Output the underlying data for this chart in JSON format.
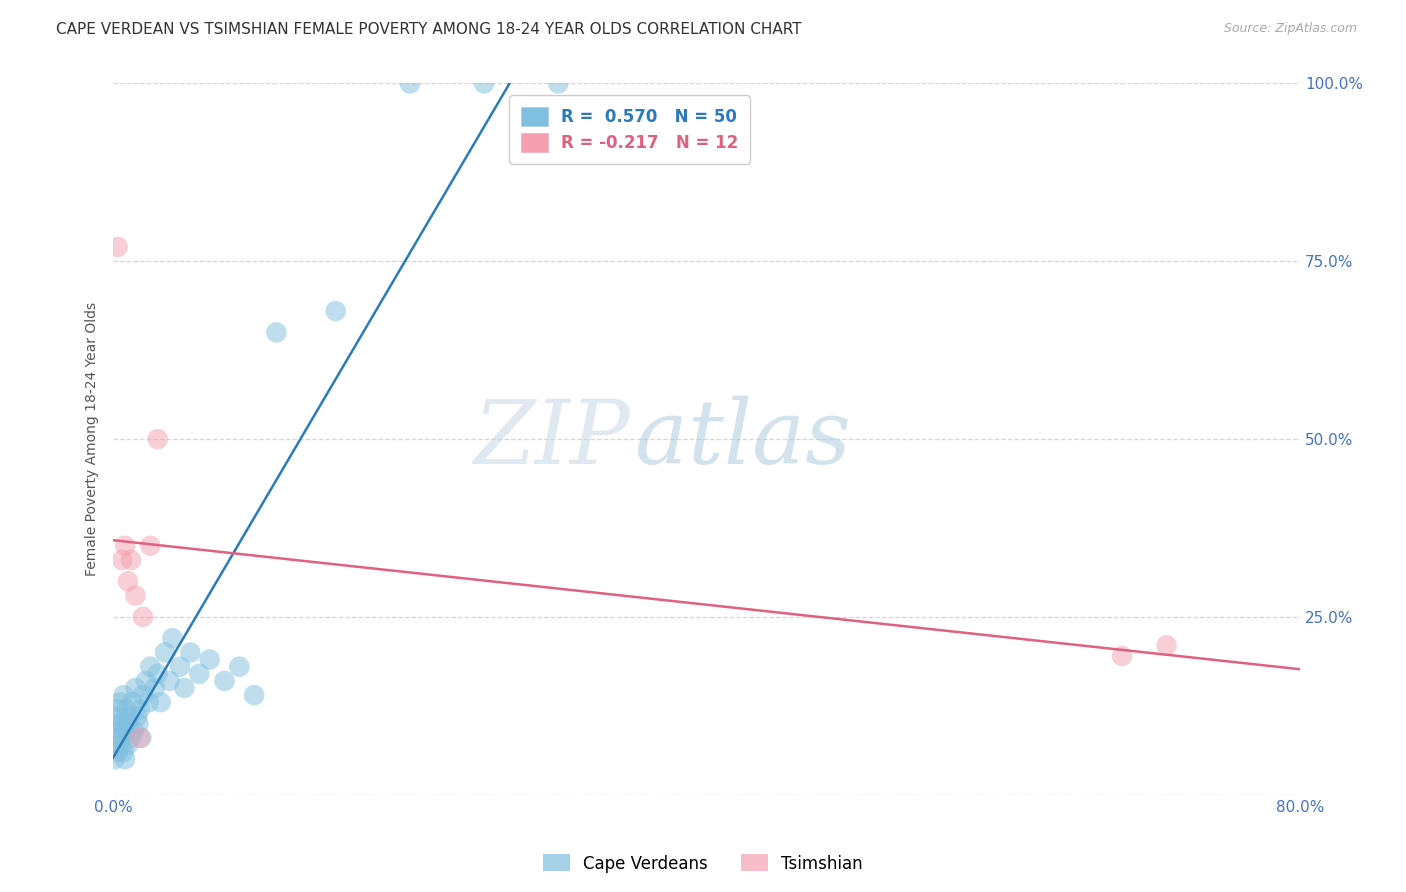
{
  "title": "CAPE VERDEAN VS TSIMSHIAN FEMALE POVERTY AMONG 18-24 YEAR OLDS CORRELATION CHART",
  "source": "Source: ZipAtlas.com",
  "ylabel": "Female Poverty Among 18-24 Year Olds",
  "xlim": [
    0.0,
    0.8
  ],
  "ylim": [
    0.0,
    1.0
  ],
  "blue_r": 0.57,
  "blue_n": 50,
  "pink_r": -0.217,
  "pink_n": 12,
  "blue_label": "Cape Verdeans",
  "pink_label": "Tsimshian",
  "blue_color": "#7fbfdf",
  "pink_color": "#f4a0b0",
  "blue_line_color": "#2b7bba",
  "pink_line_color": "#e06080",
  "blue_x": [
    0.001,
    0.002,
    0.002,
    0.003,
    0.003,
    0.004,
    0.004,
    0.005,
    0.005,
    0.006,
    0.006,
    0.007,
    0.007,
    0.008,
    0.008,
    0.009,
    0.01,
    0.01,
    0.011,
    0.012,
    0.013,
    0.014,
    0.015,
    0.016,
    0.017,
    0.018,
    0.019,
    0.02,
    0.022,
    0.024,
    0.025,
    0.028,
    0.03,
    0.032,
    0.035,
    0.038,
    0.04,
    0.045,
    0.048,
    0.052,
    0.058,
    0.065,
    0.075,
    0.085,
    0.095,
    0.11,
    0.15,
    0.2,
    0.25,
    0.3
  ],
  "blue_y": [
    0.05,
    0.08,
    0.1,
    0.06,
    0.12,
    0.09,
    0.11,
    0.07,
    0.13,
    0.08,
    0.1,
    0.06,
    0.14,
    0.05,
    0.09,
    0.12,
    0.1,
    0.07,
    0.11,
    0.08,
    0.13,
    0.09,
    0.15,
    0.11,
    0.1,
    0.12,
    0.08,
    0.14,
    0.16,
    0.13,
    0.18,
    0.15,
    0.17,
    0.13,
    0.2,
    0.16,
    0.22,
    0.18,
    0.15,
    0.2,
    0.17,
    0.19,
    0.16,
    0.18,
    0.14,
    0.65,
    0.68,
    1.0,
    1.0,
    1.0
  ],
  "pink_x": [
    0.003,
    0.006,
    0.008,
    0.01,
    0.012,
    0.015,
    0.018,
    0.02,
    0.025,
    0.03,
    0.68,
    0.71
  ],
  "pink_y": [
    0.77,
    0.33,
    0.35,
    0.3,
    0.33,
    0.28,
    0.08,
    0.25,
    0.35,
    0.5,
    0.195,
    0.21
  ],
  "watermark_zip": "ZIP",
  "watermark_atlas": "atlas",
  "background_color": "#ffffff",
  "grid_color": "#cccccc",
  "title_fontsize": 11,
  "axis_label_fontsize": 10,
  "tick_fontsize": 11,
  "legend_fontsize": 12
}
